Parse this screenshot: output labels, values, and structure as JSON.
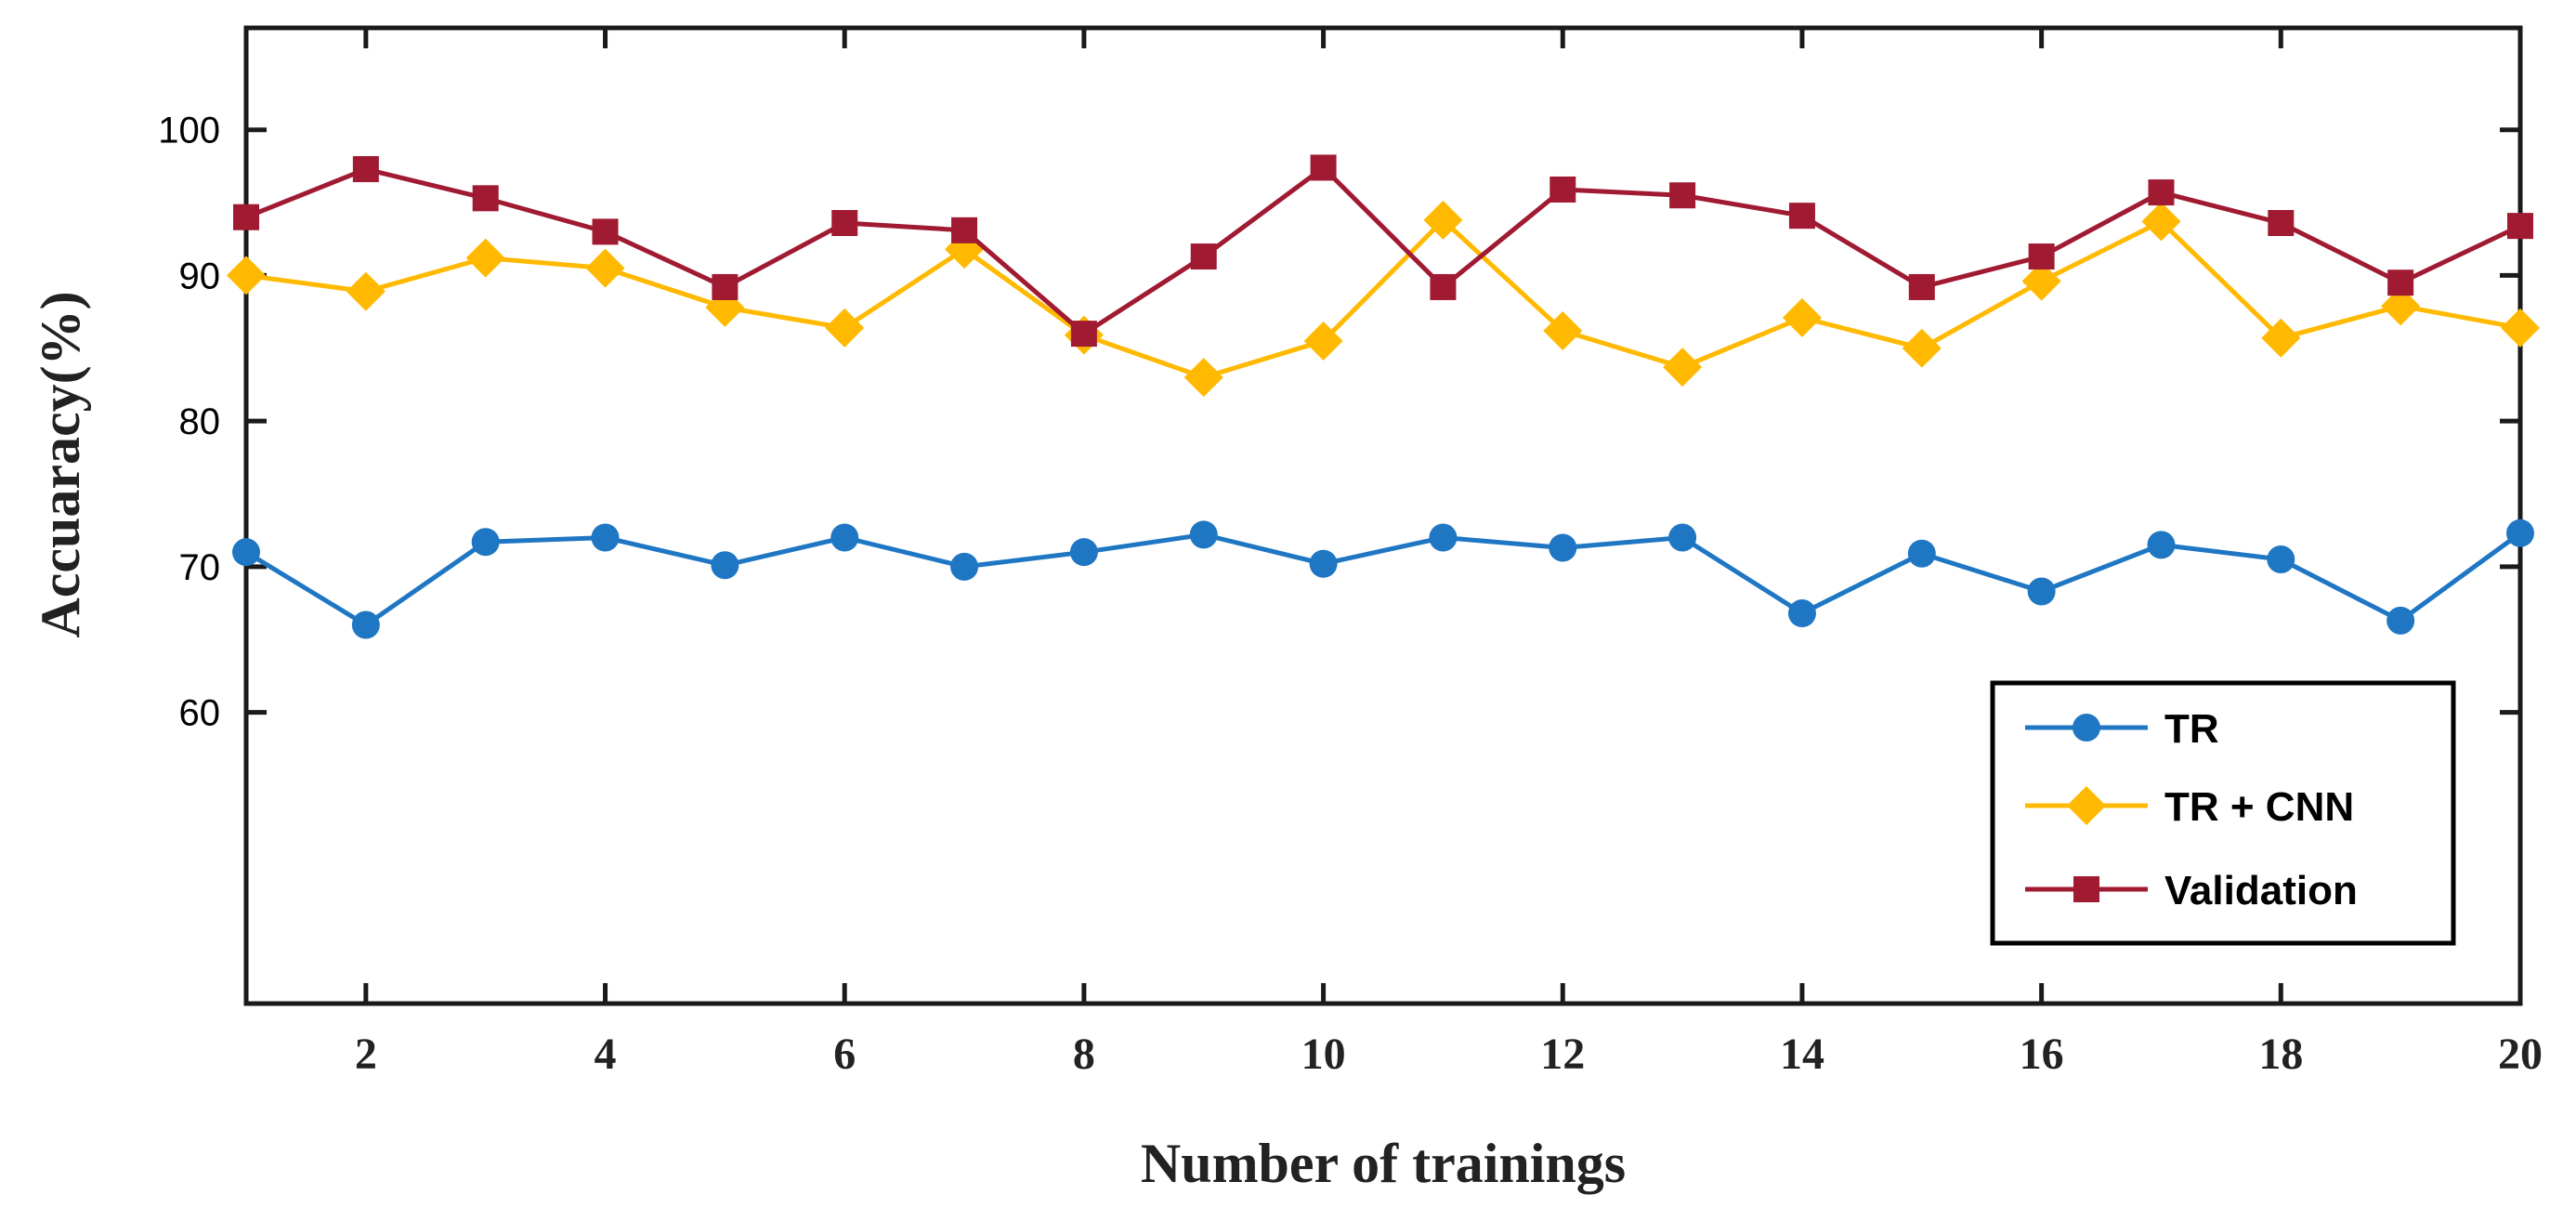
{
  "chart_data": {
    "type": "line",
    "title": "",
    "xlabel": "Number of trainings",
    "ylabel": "Accuaracy(%)",
    "xlim": [
      1,
      20
    ],
    "ylim": [
      40,
      107
    ],
    "x": [
      1,
      2,
      3,
      4,
      5,
      6,
      7,
      8,
      9,
      10,
      11,
      12,
      13,
      14,
      15,
      16,
      17,
      18,
      19,
      20
    ],
    "x_ticks": [
      "2",
      "4",
      "6",
      "8",
      "10",
      "12",
      "14",
      "16",
      "18",
      "20"
    ],
    "x_tick_values": [
      2,
      4,
      6,
      8,
      10,
      12,
      14,
      16,
      18,
      20
    ],
    "y_ticks": [
      "60",
      "70",
      "80",
      "90",
      "100"
    ],
    "y_tick_values": [
      60,
      70,
      80,
      90,
      100
    ],
    "grid": false,
    "legend_position": "bottom-right",
    "series": [
      {
        "name": "TR",
        "color": "#1f77c4",
        "marker": "circle",
        "values": [
          71.0,
          66.0,
          71.7,
          72.0,
          70.1,
          72.0,
          70.0,
          71.0,
          72.2,
          70.2,
          72.0,
          71.3,
          72.0,
          66.8,
          70.9,
          68.3,
          71.5,
          70.5,
          66.3,
          72.3
        ]
      },
      {
        "name": "TR + CNN",
        "color": "#ffb900",
        "marker": "diamond",
        "values": [
          90.0,
          88.9,
          91.2,
          90.5,
          87.8,
          86.4,
          91.8,
          85.9,
          83.0,
          85.5,
          93.8,
          86.2,
          83.7,
          87.1,
          85.0,
          89.6,
          93.7,
          85.7,
          87.9,
          86.4
        ]
      },
      {
        "name": "Validation",
        "color": "#a01a32",
        "marker": "square",
        "values": [
          94.0,
          97.3,
          95.3,
          93.0,
          89.2,
          93.6,
          93.1,
          86.0,
          91.3,
          97.4,
          89.2,
          95.9,
          95.5,
          94.1,
          89.2,
          91.3,
          95.7,
          93.6,
          89.5,
          93.4
        ]
      }
    ]
  }
}
